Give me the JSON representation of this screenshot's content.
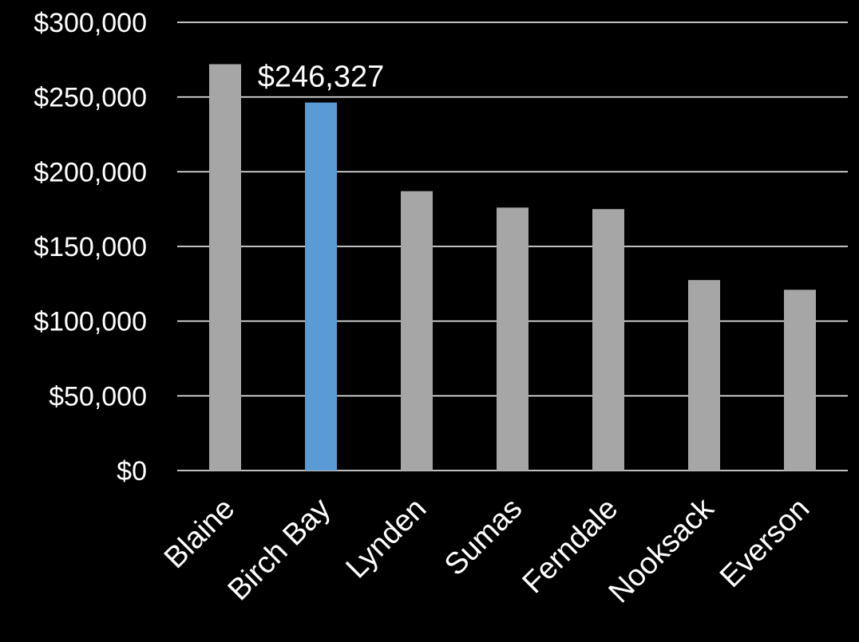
{
  "chart_data": {
    "type": "bar",
    "categories": [
      "Blaine",
      "Birch Bay",
      "Lynden",
      "Sumas",
      "Ferndale",
      "Nooksack",
      "Everson"
    ],
    "values": [
      272000,
      246327,
      187000,
      176000,
      175000,
      127500,
      121000
    ],
    "highlight_index": 1,
    "data_labels": [
      {
        "index": 1,
        "text": "$246,327"
      }
    ],
    "ylim": [
      0,
      300000
    ],
    "y_ticks": [
      0,
      50000,
      100000,
      150000,
      200000,
      250000,
      300000
    ],
    "y_tick_labels": [
      "$0",
      "$50,000",
      "$100,000",
      "$150,000",
      "$200,000",
      "$250,000",
      "$300,000"
    ],
    "grid": true,
    "legend": "none",
    "colors": {
      "background": "#000000",
      "bar": "#a6a6a6",
      "highlight": "#5b9bd5",
      "grid": "#ffffff",
      "text": "#ffffff"
    }
  }
}
